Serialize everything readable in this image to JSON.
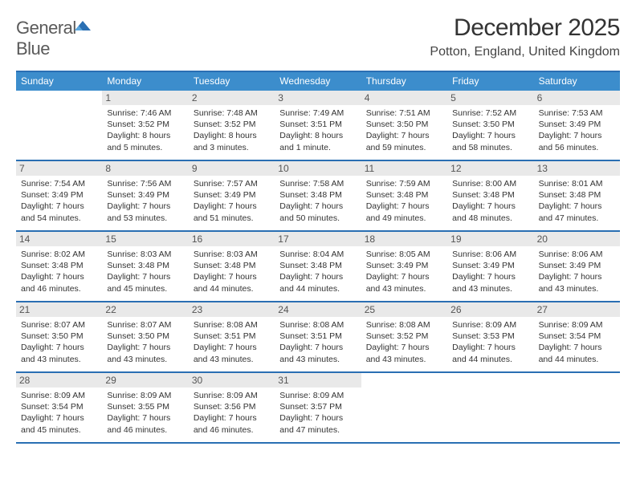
{
  "logo": {
    "word1": "General",
    "word2": "Blue"
  },
  "title": "December 2025",
  "location": "Potton, England, United Kingdom",
  "colors": {
    "header_bg": "#3c8dcc",
    "rule": "#2a6fb3",
    "daynum_bg": "#e9e9e9",
    "text": "#333333"
  },
  "weekdays": [
    "Sunday",
    "Monday",
    "Tuesday",
    "Wednesday",
    "Thursday",
    "Friday",
    "Saturday"
  ],
  "weeks": [
    [
      {
        "n": "",
        "sr": "",
        "ss": "",
        "dl": ""
      },
      {
        "n": "1",
        "sr": "Sunrise: 7:46 AM",
        "ss": "Sunset: 3:52 PM",
        "dl": "Daylight: 8 hours and 5 minutes."
      },
      {
        "n": "2",
        "sr": "Sunrise: 7:48 AM",
        "ss": "Sunset: 3:52 PM",
        "dl": "Daylight: 8 hours and 3 minutes."
      },
      {
        "n": "3",
        "sr": "Sunrise: 7:49 AM",
        "ss": "Sunset: 3:51 PM",
        "dl": "Daylight: 8 hours and 1 minute."
      },
      {
        "n": "4",
        "sr": "Sunrise: 7:51 AM",
        "ss": "Sunset: 3:50 PM",
        "dl": "Daylight: 7 hours and 59 minutes."
      },
      {
        "n": "5",
        "sr": "Sunrise: 7:52 AM",
        "ss": "Sunset: 3:50 PM",
        "dl": "Daylight: 7 hours and 58 minutes."
      },
      {
        "n": "6",
        "sr": "Sunrise: 7:53 AM",
        "ss": "Sunset: 3:49 PM",
        "dl": "Daylight: 7 hours and 56 minutes."
      }
    ],
    [
      {
        "n": "7",
        "sr": "Sunrise: 7:54 AM",
        "ss": "Sunset: 3:49 PM",
        "dl": "Daylight: 7 hours and 54 minutes."
      },
      {
        "n": "8",
        "sr": "Sunrise: 7:56 AM",
        "ss": "Sunset: 3:49 PM",
        "dl": "Daylight: 7 hours and 53 minutes."
      },
      {
        "n": "9",
        "sr": "Sunrise: 7:57 AM",
        "ss": "Sunset: 3:49 PM",
        "dl": "Daylight: 7 hours and 51 minutes."
      },
      {
        "n": "10",
        "sr": "Sunrise: 7:58 AM",
        "ss": "Sunset: 3:48 PM",
        "dl": "Daylight: 7 hours and 50 minutes."
      },
      {
        "n": "11",
        "sr": "Sunrise: 7:59 AM",
        "ss": "Sunset: 3:48 PM",
        "dl": "Daylight: 7 hours and 49 minutes."
      },
      {
        "n": "12",
        "sr": "Sunrise: 8:00 AM",
        "ss": "Sunset: 3:48 PM",
        "dl": "Daylight: 7 hours and 48 minutes."
      },
      {
        "n": "13",
        "sr": "Sunrise: 8:01 AM",
        "ss": "Sunset: 3:48 PM",
        "dl": "Daylight: 7 hours and 47 minutes."
      }
    ],
    [
      {
        "n": "14",
        "sr": "Sunrise: 8:02 AM",
        "ss": "Sunset: 3:48 PM",
        "dl": "Daylight: 7 hours and 46 minutes."
      },
      {
        "n": "15",
        "sr": "Sunrise: 8:03 AM",
        "ss": "Sunset: 3:48 PM",
        "dl": "Daylight: 7 hours and 45 minutes."
      },
      {
        "n": "16",
        "sr": "Sunrise: 8:03 AM",
        "ss": "Sunset: 3:48 PM",
        "dl": "Daylight: 7 hours and 44 minutes."
      },
      {
        "n": "17",
        "sr": "Sunrise: 8:04 AM",
        "ss": "Sunset: 3:48 PM",
        "dl": "Daylight: 7 hours and 44 minutes."
      },
      {
        "n": "18",
        "sr": "Sunrise: 8:05 AM",
        "ss": "Sunset: 3:49 PM",
        "dl": "Daylight: 7 hours and 43 minutes."
      },
      {
        "n": "19",
        "sr": "Sunrise: 8:06 AM",
        "ss": "Sunset: 3:49 PM",
        "dl": "Daylight: 7 hours and 43 minutes."
      },
      {
        "n": "20",
        "sr": "Sunrise: 8:06 AM",
        "ss": "Sunset: 3:49 PM",
        "dl": "Daylight: 7 hours and 43 minutes."
      }
    ],
    [
      {
        "n": "21",
        "sr": "Sunrise: 8:07 AM",
        "ss": "Sunset: 3:50 PM",
        "dl": "Daylight: 7 hours and 43 minutes."
      },
      {
        "n": "22",
        "sr": "Sunrise: 8:07 AM",
        "ss": "Sunset: 3:50 PM",
        "dl": "Daylight: 7 hours and 43 minutes."
      },
      {
        "n": "23",
        "sr": "Sunrise: 8:08 AM",
        "ss": "Sunset: 3:51 PM",
        "dl": "Daylight: 7 hours and 43 minutes."
      },
      {
        "n": "24",
        "sr": "Sunrise: 8:08 AM",
        "ss": "Sunset: 3:51 PM",
        "dl": "Daylight: 7 hours and 43 minutes."
      },
      {
        "n": "25",
        "sr": "Sunrise: 8:08 AM",
        "ss": "Sunset: 3:52 PM",
        "dl": "Daylight: 7 hours and 43 minutes."
      },
      {
        "n": "26",
        "sr": "Sunrise: 8:09 AM",
        "ss": "Sunset: 3:53 PM",
        "dl": "Daylight: 7 hours and 44 minutes."
      },
      {
        "n": "27",
        "sr": "Sunrise: 8:09 AM",
        "ss": "Sunset: 3:54 PM",
        "dl": "Daylight: 7 hours and 44 minutes."
      }
    ],
    [
      {
        "n": "28",
        "sr": "Sunrise: 8:09 AM",
        "ss": "Sunset: 3:54 PM",
        "dl": "Daylight: 7 hours and 45 minutes."
      },
      {
        "n": "29",
        "sr": "Sunrise: 8:09 AM",
        "ss": "Sunset: 3:55 PM",
        "dl": "Daylight: 7 hours and 46 minutes."
      },
      {
        "n": "30",
        "sr": "Sunrise: 8:09 AM",
        "ss": "Sunset: 3:56 PM",
        "dl": "Daylight: 7 hours and 46 minutes."
      },
      {
        "n": "31",
        "sr": "Sunrise: 8:09 AM",
        "ss": "Sunset: 3:57 PM",
        "dl": "Daylight: 7 hours and 47 minutes."
      },
      {
        "n": "",
        "sr": "",
        "ss": "",
        "dl": ""
      },
      {
        "n": "",
        "sr": "",
        "ss": "",
        "dl": ""
      },
      {
        "n": "",
        "sr": "",
        "ss": "",
        "dl": ""
      }
    ]
  ]
}
